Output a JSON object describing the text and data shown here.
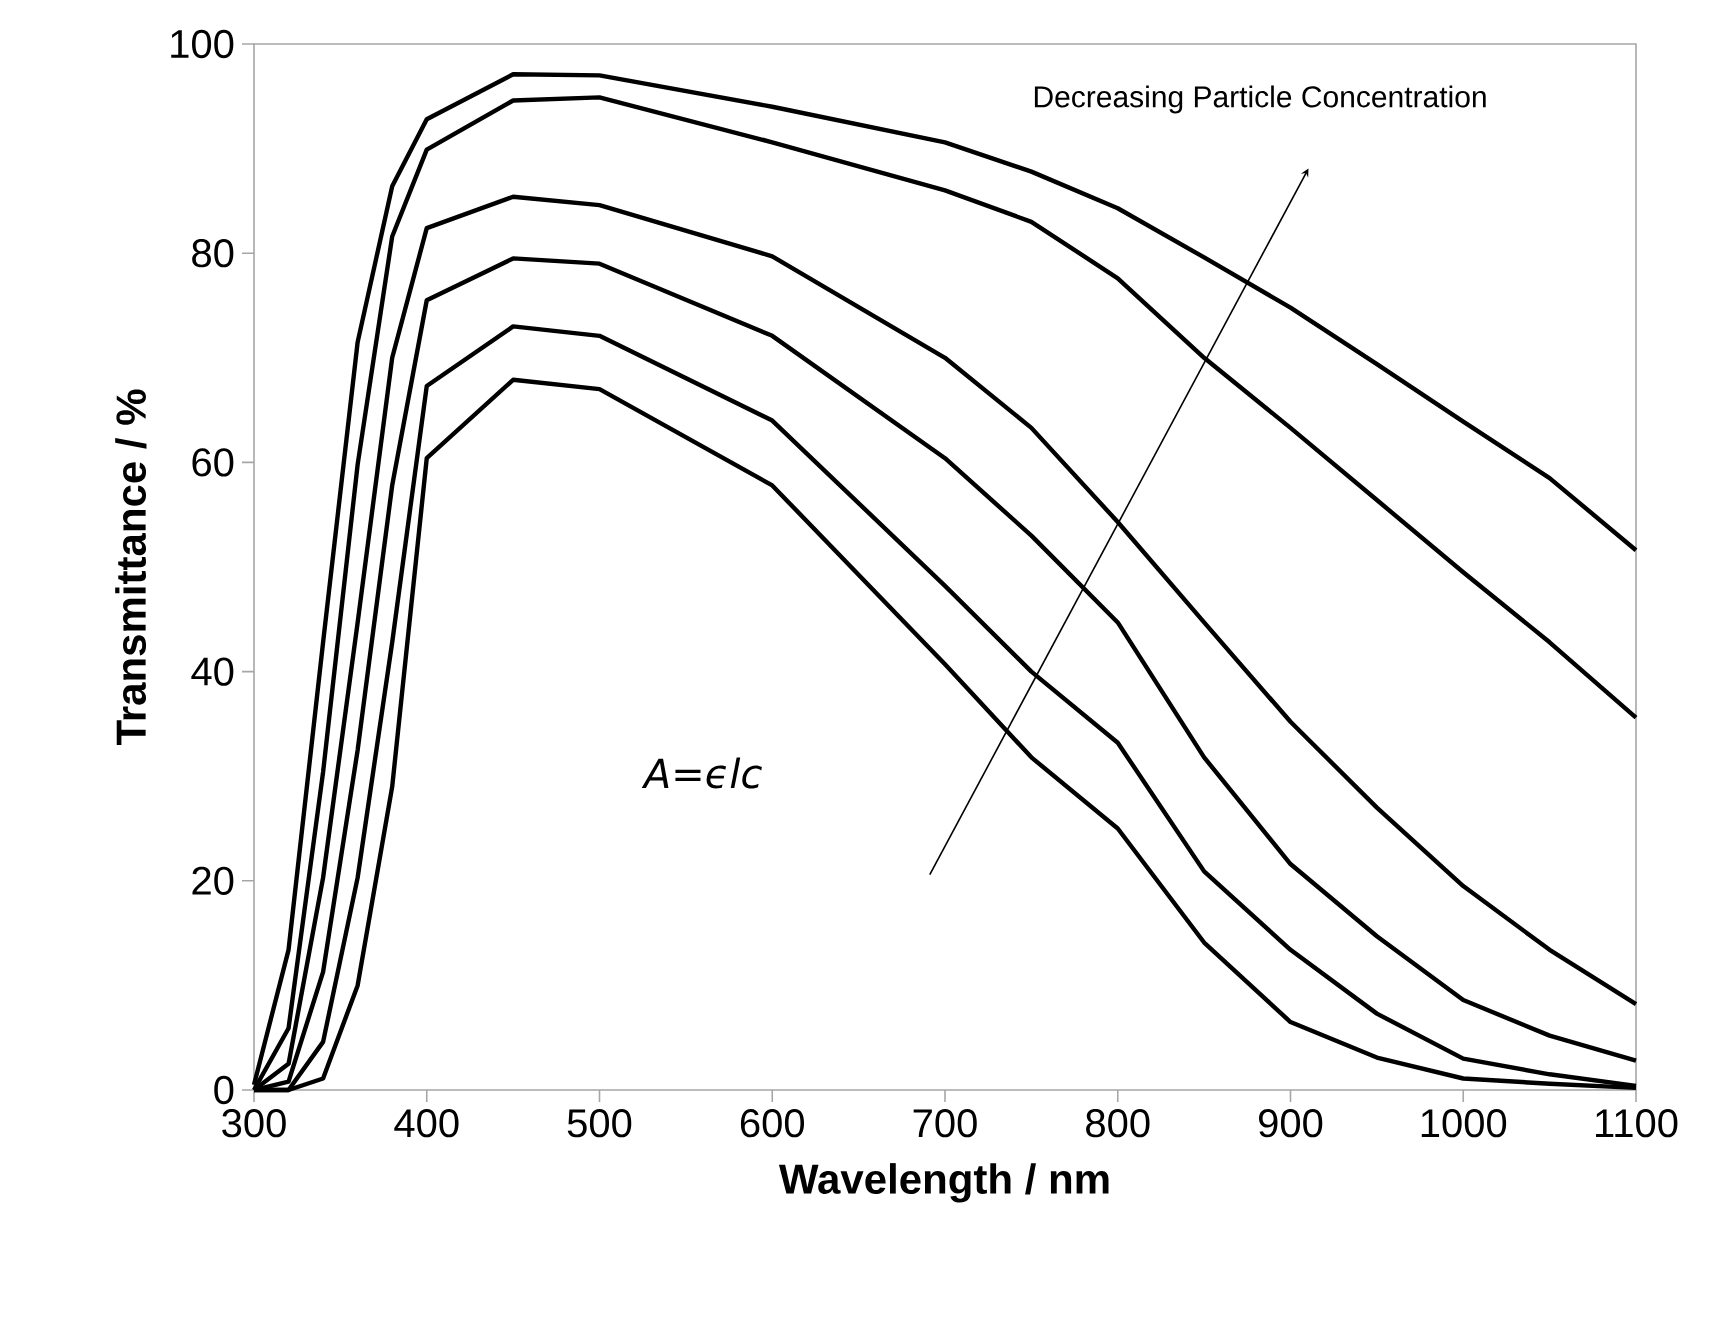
{
  "chart_data": {
    "type": "line",
    "xlabel": "Wavelength / nm",
    "ylabel": "Transmittance / %",
    "annotations": [
      "Decreasing Particle Concentration",
      "A=ϵlc"
    ],
    "x": [
      300,
      320,
      340,
      360,
      380,
      400,
      450,
      500,
      600,
      700,
      750,
      800,
      850,
      900,
      950,
      1000,
      1050,
      1100
    ],
    "series": [
      {
        "color": "#000000",
        "values": [
          0.5,
          13.4,
          42.8,
          71.5,
          86.4,
          92.8,
          97.1,
          97,
          94,
          90.6,
          87.8,
          84.3,
          79.6,
          74.8,
          69.4,
          63.9,
          58.5,
          51.6
        ]
      },
      {
        "color": "#000000",
        "values": [
          0,
          5.9,
          30.4,
          59.8,
          81.6,
          89.9,
          94.6,
          94.9,
          90.6,
          86,
          83,
          77.6,
          70,
          63.3,
          56.4,
          49.5,
          42.8,
          35.6
        ]
      },
      {
        "color": "#000000",
        "values": [
          0,
          2.5,
          20.3,
          44.7,
          70,
          82.4,
          85.4,
          84.6,
          79.7,
          70,
          63.3,
          54.3,
          44.7,
          35.2,
          27,
          19.5,
          13.4,
          8.2
        ]
      },
      {
        "color": "#000000",
        "values": [
          0,
          0.8,
          11.3,
          32.5,
          57.8,
          75.5,
          79.5,
          79,
          72.1,
          60.4,
          53,
          44.7,
          31.8,
          21.6,
          14.7,
          8.6,
          5.2,
          2.8
        ]
      },
      {
        "color": "#000000",
        "values": [
          0,
          0,
          4.6,
          20.3,
          42.8,
          67.3,
          73,
          72.1,
          64,
          48.2,
          40,
          33.2,
          20.9,
          13.4,
          7.3,
          3,
          1.5,
          0.4
        ]
      },
      {
        "color": "#000000",
        "values": [
          0,
          0,
          1.1,
          10,
          29,
          60.4,
          67.9,
          67,
          57.8,
          40.7,
          31.8,
          25,
          14.1,
          6.5,
          3.1,
          1.1,
          0.6,
          0.2
        ]
      }
    ],
    "xlim": [
      300,
      1100
    ],
    "xticks": [
      300,
      400,
      500,
      600,
      700,
      800,
      900,
      1000,
      1100
    ],
    "ylim": [
      0,
      100
    ],
    "yticks": [
      0,
      20,
      40,
      60,
      80,
      100
    ],
    "grid": false,
    "marker": "none",
    "line_style": "solid"
  }
}
